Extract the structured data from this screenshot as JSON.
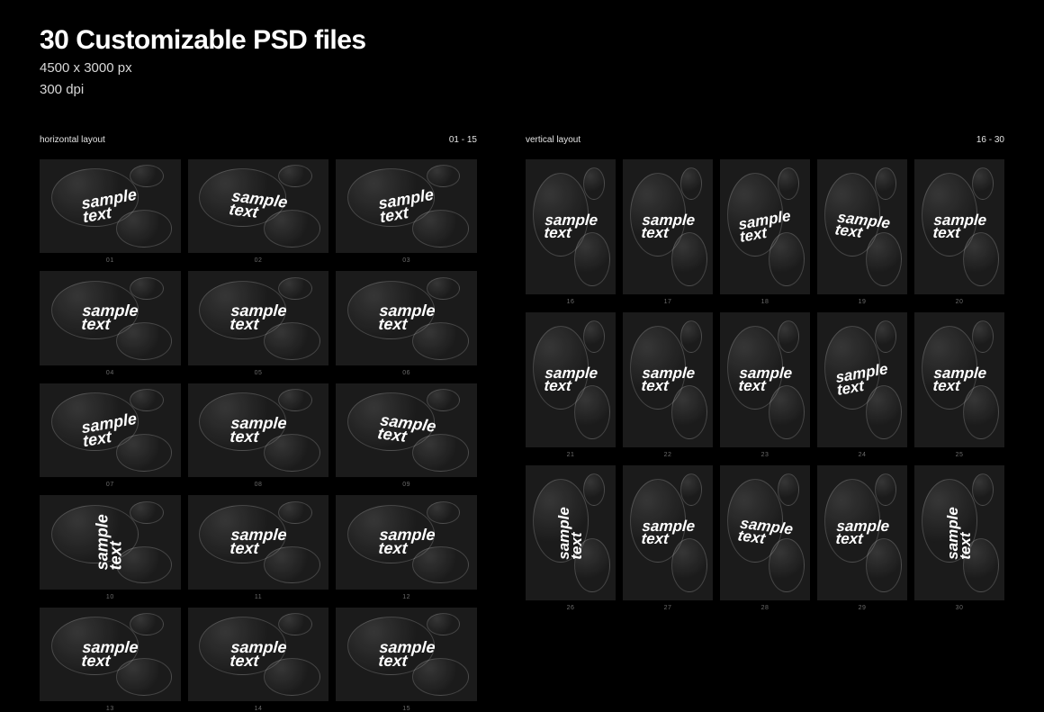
{
  "background_color": "#000000",
  "thumb_color": "#1b1b1b",
  "caption_color": "#6b6b6b",
  "text_color": "#ffffff",
  "header": {
    "title": "30 Customizable PSD files",
    "subtitle_line1": "4500 x 3000 px",
    "subtitle_line2": "300 dpi"
  },
  "columns": {
    "left": {
      "label": "horizontal layout",
      "range": "01 - 15"
    },
    "right": {
      "label": "vertical layout",
      "range": "16 - 30"
    }
  },
  "sample_text": "sample\ntext",
  "horizontal": [
    {
      "num": "01",
      "rot": "r10"
    },
    {
      "num": "02",
      "rot": "r350"
    },
    {
      "num": "03",
      "rot": "r10"
    },
    {
      "num": "04",
      "rot": ""
    },
    {
      "num": "05",
      "rot": ""
    },
    {
      "num": "06",
      "rot": ""
    },
    {
      "num": "07",
      "rot": "r10"
    },
    {
      "num": "08",
      "rot": ""
    },
    {
      "num": "09",
      "rot": "r350"
    },
    {
      "num": "10",
      "rot": "r90"
    },
    {
      "num": "11",
      "rot": ""
    },
    {
      "num": "12",
      "rot": ""
    },
    {
      "num": "13",
      "rot": ""
    },
    {
      "num": "14",
      "rot": ""
    },
    {
      "num": "15",
      "rot": ""
    }
  ],
  "vertical": [
    {
      "num": "16",
      "rot": ""
    },
    {
      "num": "17",
      "rot": ""
    },
    {
      "num": "18",
      "rot": "r10"
    },
    {
      "num": "19",
      "rot": "r350"
    },
    {
      "num": "20",
      "rot": ""
    },
    {
      "num": "21",
      "rot": ""
    },
    {
      "num": "22",
      "rot": ""
    },
    {
      "num": "23",
      "rot": ""
    },
    {
      "num": "24",
      "rot": "r10"
    },
    {
      "num": "25",
      "rot": ""
    },
    {
      "num": "26",
      "rot": "r90"
    },
    {
      "num": "27",
      "rot": ""
    },
    {
      "num": "28",
      "rot": "r350"
    },
    {
      "num": "29",
      "rot": ""
    },
    {
      "num": "30",
      "rot": "r90"
    }
  ]
}
